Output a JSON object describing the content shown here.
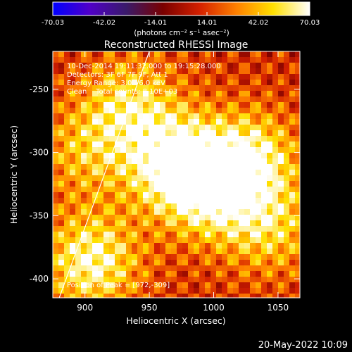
{
  "colorbar": {
    "tick_labels": [
      "-70.03",
      "-42.02",
      "-14.01",
      "14.01",
      "42.02",
      "70.03"
    ],
    "range": [
      -70.03,
      70.03
    ],
    "unit_label": "(photons cm⁻² s⁻¹ asec⁻²)",
    "colors": [
      "#0000ff",
      "#5000c8",
      "#3a1a6a",
      "#7a0000",
      "#d42000",
      "#ff8000",
      "#ffe000",
      "#ffffff"
    ]
  },
  "chart_data": {
    "type": "heatmap",
    "title": "Reconstructed RHESSI Image",
    "xlabel": "Heliocentric X (arcsec)",
    "ylabel": "Heliocentric Y (arcsec)",
    "xlim": [
      875,
      1067
    ],
    "ylim": [
      -415,
      -220
    ],
    "x_ticks": [
      900,
      950,
      1000,
      1050
    ],
    "y_ticks": [
      -250,
      -300,
      -350,
      -400
    ],
    "limb_line": [
      [
        880,
        -415
      ],
      [
        950,
        -220
      ]
    ],
    "info_lines": [
      "10-Dec-2014 19:11:32.000 to 19:15:28.000",
      "Detectors: 3F 6F 7F 9F, Att 1",
      "Energy Range: 3.0 - 6.0 keV",
      "Clean    Total counts: 8.10E+03"
    ],
    "peak_label": "Position of Peak = [972,-309]",
    "peak_position": [
      972,
      -309
    ],
    "sources": [
      {
        "x": 972,
        "y": -309,
        "amp": 70
      },
      {
        "x": 1028,
        "y": -305,
        "amp": 52
      },
      {
        "x": 935,
        "y": -262,
        "amp": 42
      },
      {
        "x": 1000,
        "y": -335,
        "amp": 40
      },
      {
        "x": 905,
        "y": -385,
        "amp": 55
      },
      {
        "x": 1045,
        "y": -360,
        "amp": 35
      },
      {
        "x": 900,
        "y": -300,
        "amp": 30
      }
    ]
  },
  "footer": {
    "timestamp": "20-May-2022 10:09"
  }
}
